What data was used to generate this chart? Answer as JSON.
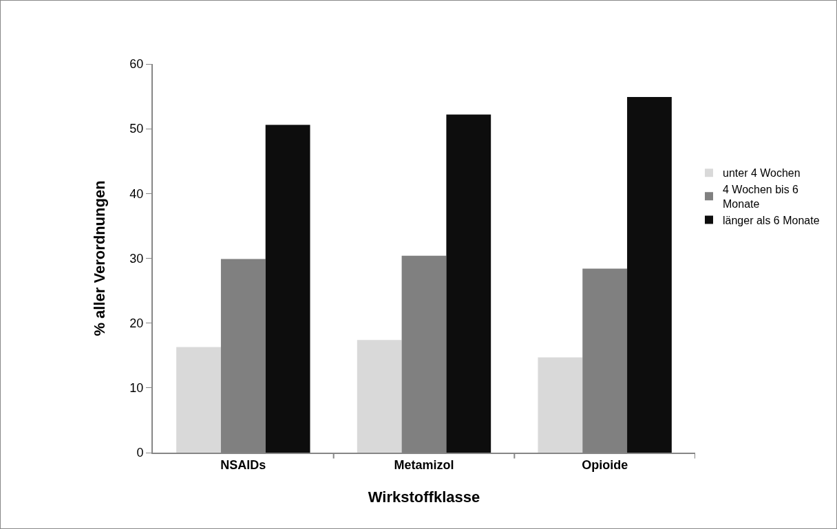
{
  "chart_data": {
    "type": "bar",
    "xlabel": "Wirkstoffklasse",
    "ylabel": "% aller Verordnungen",
    "categories": [
      "NSAIDs",
      "Metamizol",
      "Opioide"
    ],
    "series": [
      {
        "name": "unter 4 Wochen",
        "color": "#d9d9d9",
        "values": [
          16.3,
          17.4,
          14.7
        ]
      },
      {
        "name": "4 Wochen bis 6 Monate",
        "color": "#808080",
        "values": [
          29.9,
          30.4,
          28.4
        ]
      },
      {
        "name": "länger als 6 Monate",
        "color": "#0d0d0d",
        "values": [
          50.6,
          52.2,
          54.9
        ]
      }
    ],
    "ylim": [
      0,
      60
    ],
    "yticks": [
      0,
      10,
      20,
      30,
      40,
      50,
      60
    ],
    "grid": false,
    "legend": "right"
  }
}
